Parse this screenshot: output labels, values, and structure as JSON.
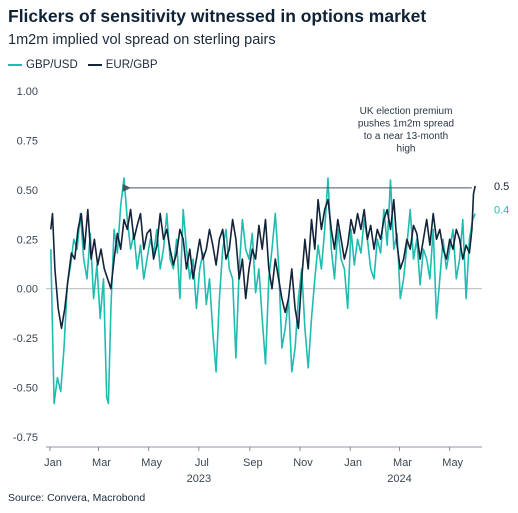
{
  "title": "Flickers of sensitivity witnessed in options market",
  "subtitle": "1m2m implied vol spread on sterling pairs",
  "source": "Source: Convera, Macrobond",
  "colors": {
    "gbpusd": "#1fbcb0",
    "eurgbp": "#13233a",
    "axis": "#6b7682"
  },
  "chart_data": {
    "type": "line",
    "title": "Flickers of sensitivity witnessed in options market",
    "subtitle": "1m2m implied vol spread on sterling pairs",
    "xlabel": "",
    "ylabel": "",
    "ylim": [
      -0.75,
      1.0
    ],
    "yticks": [
      "1.00",
      "0.75",
      "0.50",
      "0.25",
      "0.00",
      "-0.25",
      "-0.50",
      "-0.75"
    ],
    "xticks": [
      "Jan",
      "Mar",
      "May",
      "Jul",
      "Sep",
      "Nov",
      "Jan",
      "Mar",
      "May"
    ],
    "year_labels": [
      "2023",
      "2024"
    ],
    "grid": false,
    "legend": "top-left",
    "series": [
      {
        "name": "GBP/USD",
        "end_label": "0.4",
        "color": "#1fbcb0",
        "points": [
          [
            "2023-01-02",
            0.2
          ],
          [
            "2023-01-06",
            -0.58
          ],
          [
            "2023-01-10",
            -0.45
          ],
          [
            "2023-01-14",
            -0.52
          ],
          [
            "2023-01-18",
            -0.3
          ],
          [
            "2023-01-22",
            0.02
          ],
          [
            "2023-01-26",
            0.12
          ],
          [
            "2023-01-30",
            0.25
          ],
          [
            "2023-02-03",
            0.2
          ],
          [
            "2023-02-07",
            0.38
          ],
          [
            "2023-02-11",
            0.15
          ],
          [
            "2023-02-15",
            0.05
          ],
          [
            "2023-02-19",
            0.28
          ],
          [
            "2023-02-23",
            -0.05
          ],
          [
            "2023-02-27",
            0.12
          ],
          [
            "2023-03-03",
            -0.15
          ],
          [
            "2023-03-07",
            0.05
          ],
          [
            "2023-03-11",
            -0.55
          ],
          [
            "2023-03-13",
            -0.58
          ],
          [
            "2023-03-16",
            -0.1
          ],
          [
            "2023-03-20",
            0.3
          ],
          [
            "2023-03-24",
            0.18
          ],
          [
            "2023-03-28",
            0.42
          ],
          [
            "2023-04-01",
            0.56
          ],
          [
            "2023-04-05",
            0.35
          ],
          [
            "2023-04-09",
            0.2
          ],
          [
            "2023-04-13",
            0.28
          ],
          [
            "2023-04-17",
            0.1
          ],
          [
            "2023-04-21",
            0.22
          ],
          [
            "2023-04-25",
            0.05
          ],
          [
            "2023-04-29",
            0.15
          ],
          [
            "2023-05-03",
            0.25
          ],
          [
            "2023-05-07",
            0.18
          ],
          [
            "2023-05-11",
            0.3
          ],
          [
            "2023-05-15",
            0.1
          ],
          [
            "2023-05-19",
            0.2
          ],
          [
            "2023-05-23",
            0.38
          ],
          [
            "2023-05-27",
            0.15
          ],
          [
            "2023-05-31",
            0.1
          ],
          [
            "2023-06-04",
            0.25
          ],
          [
            "2023-06-08",
            -0.05
          ],
          [
            "2023-06-12",
            0.4
          ],
          [
            "2023-06-16",
            0.2
          ],
          [
            "2023-06-20",
            0.05
          ],
          [
            "2023-06-24",
            0.15
          ],
          [
            "2023-06-28",
            -0.1
          ],
          [
            "2023-07-02",
            0.1
          ],
          [
            "2023-07-06",
            0.18
          ],
          [
            "2023-07-10",
            -0.08
          ],
          [
            "2023-07-14",
            0.05
          ],
          [
            "2023-07-18",
            -0.22
          ],
          [
            "2023-07-22",
            -0.42
          ],
          [
            "2023-07-26",
            -0.05
          ],
          [
            "2023-07-30",
            0.2
          ],
          [
            "2023-08-03",
            0.3
          ],
          [
            "2023-08-07",
            0.1
          ],
          [
            "2023-08-11",
            0.05
          ],
          [
            "2023-08-15",
            -0.35
          ],
          [
            "2023-08-19",
            0.1
          ],
          [
            "2023-08-23",
            0.35
          ],
          [
            "2023-08-27",
            0.2
          ],
          [
            "2023-08-31",
            0.15
          ],
          [
            "2023-09-04",
            0.28
          ],
          [
            "2023-09-08",
            -0.02
          ],
          [
            "2023-09-12",
            0.1
          ],
          [
            "2023-09-16",
            -0.15
          ],
          [
            "2023-09-20",
            -0.38
          ],
          [
            "2023-09-24",
            0.05
          ],
          [
            "2023-09-28",
            0.2
          ],
          [
            "2023-10-02",
            0.38
          ],
          [
            "2023-10-06",
            0.12
          ],
          [
            "2023-10-10",
            -0.3
          ],
          [
            "2023-10-14",
            -0.2
          ],
          [
            "2023-10-18",
            -0.05
          ],
          [
            "2023-10-22",
            -0.42
          ],
          [
            "2023-10-26",
            -0.3
          ],
          [
            "2023-10-30",
            -0.05
          ],
          [
            "2023-11-03",
            0.1
          ],
          [
            "2023-11-07",
            -0.2
          ],
          [
            "2023-11-11",
            -0.4
          ],
          [
            "2023-11-15",
            -0.15
          ],
          [
            "2023-11-19",
            0.05
          ],
          [
            "2023-11-23",
            0.22
          ],
          [
            "2023-11-27",
            0.1
          ],
          [
            "2023-12-01",
            0.3
          ],
          [
            "2023-12-05",
            0.56
          ],
          [
            "2023-12-09",
            0.2
          ],
          [
            "2023-12-13",
            0.05
          ],
          [
            "2023-12-17",
            0.3
          ],
          [
            "2023-12-21",
            0.15
          ],
          [
            "2023-12-25",
            0.1
          ],
          [
            "2023-12-29",
            -0.1
          ],
          [
            "2024-01-02",
            0.3
          ],
          [
            "2024-01-06",
            0.12
          ],
          [
            "2024-01-10",
            0.25
          ],
          [
            "2024-01-14",
            0.18
          ],
          [
            "2024-01-18",
            0.35
          ],
          [
            "2024-01-22",
            0.25
          ],
          [
            "2024-01-26",
            0.1
          ],
          [
            "2024-01-30",
            0.05
          ],
          [
            "2024-02-03",
            0.25
          ],
          [
            "2024-02-07",
            0.18
          ],
          [
            "2024-02-11",
            0.4
          ],
          [
            "2024-02-15",
            0.22
          ],
          [
            "2024-02-19",
            0.55
          ],
          [
            "2024-02-23",
            0.2
          ],
          [
            "2024-02-27",
            0.28
          ],
          [
            "2024-03-02",
            -0.05
          ],
          [
            "2024-03-06",
            0.05
          ],
          [
            "2024-03-10",
            0.22
          ],
          [
            "2024-03-14",
            0.4
          ],
          [
            "2024-03-18",
            0.15
          ],
          [
            "2024-03-22",
            0.25
          ],
          [
            "2024-03-26",
            0.02
          ],
          [
            "2024-03-30",
            0.2
          ],
          [
            "2024-04-03",
            0.15
          ],
          [
            "2024-04-07",
            0.05
          ],
          [
            "2024-04-11",
            0.3
          ],
          [
            "2024-04-15",
            -0.15
          ],
          [
            "2024-04-19",
            0.05
          ],
          [
            "2024-04-23",
            0.25
          ],
          [
            "2024-04-27",
            0.1
          ],
          [
            "2024-05-01",
            0.2
          ],
          [
            "2024-05-05",
            0.3
          ],
          [
            "2024-05-09",
            0.05
          ],
          [
            "2024-05-13",
            0.15
          ],
          [
            "2024-05-17",
            0.35
          ],
          [
            "2024-05-21",
            -0.05
          ],
          [
            "2024-05-25",
            0.25
          ],
          [
            "2024-05-29",
            0.35
          ],
          [
            "2024-06-01",
            0.38
          ]
        ]
      },
      {
        "name": "EUR/GBP",
        "end_label": "0.5",
        "color": "#13233a",
        "points": [
          [
            "2023-01-02",
            0.3
          ],
          [
            "2023-01-04",
            0.38
          ],
          [
            "2023-01-07",
            0.1
          ],
          [
            "2023-01-11",
            -0.1
          ],
          [
            "2023-01-15",
            -0.2
          ],
          [
            "2023-01-19",
            -0.1
          ],
          [
            "2023-01-23",
            0.05
          ],
          [
            "2023-01-27",
            0.18
          ],
          [
            "2023-01-31",
            0.15
          ],
          [
            "2023-02-04",
            0.3
          ],
          [
            "2023-02-08",
            0.38
          ],
          [
            "2023-02-12",
            0.2
          ],
          [
            "2023-02-16",
            0.4
          ],
          [
            "2023-02-20",
            0.15
          ],
          [
            "2023-02-24",
            0.25
          ],
          [
            "2023-02-28",
            0.12
          ],
          [
            "2023-03-04",
            0.2
          ],
          [
            "2023-03-08",
            0.1
          ],
          [
            "2023-03-12",
            0.05
          ],
          [
            "2023-03-16",
            0.0
          ],
          [
            "2023-03-20",
            0.15
          ],
          [
            "2023-03-24",
            0.28
          ],
          [
            "2023-03-28",
            0.2
          ],
          [
            "2023-04-01",
            0.35
          ],
          [
            "2023-04-05",
            0.3
          ],
          [
            "2023-04-09",
            0.4
          ],
          [
            "2023-04-13",
            0.25
          ],
          [
            "2023-04-17",
            0.32
          ],
          [
            "2023-04-21",
            0.38
          ],
          [
            "2023-04-25",
            0.2
          ],
          [
            "2023-04-29",
            0.28
          ],
          [
            "2023-05-03",
            0.3
          ],
          [
            "2023-05-07",
            0.15
          ],
          [
            "2023-05-11",
            0.22
          ],
          [
            "2023-05-15",
            0.38
          ],
          [
            "2023-05-19",
            0.25
          ],
          [
            "2023-05-23",
            0.3
          ],
          [
            "2023-05-27",
            0.2
          ],
          [
            "2023-05-31",
            0.12
          ],
          [
            "2023-06-04",
            0.18
          ],
          [
            "2023-06-08",
            0.3
          ],
          [
            "2023-06-12",
            0.25
          ],
          [
            "2023-06-16",
            0.1
          ],
          [
            "2023-06-20",
            0.2
          ],
          [
            "2023-06-24",
            0.05
          ],
          [
            "2023-06-28",
            0.15
          ],
          [
            "2023-07-02",
            0.25
          ],
          [
            "2023-07-06",
            0.15
          ],
          [
            "2023-07-10",
            0.2
          ],
          [
            "2023-07-14",
            0.3
          ],
          [
            "2023-07-18",
            0.22
          ],
          [
            "2023-07-22",
            0.12
          ],
          [
            "2023-07-26",
            0.25
          ],
          [
            "2023-07-30",
            0.3
          ],
          [
            "2023-08-03",
            0.15
          ],
          [
            "2023-08-07",
            0.2
          ],
          [
            "2023-08-11",
            0.35
          ],
          [
            "2023-08-15",
            0.25
          ],
          [
            "2023-08-19",
            0.05
          ],
          [
            "2023-08-23",
            0.15
          ],
          [
            "2023-08-27",
            -0.05
          ],
          [
            "2023-08-31",
            0.1
          ],
          [
            "2023-09-04",
            0.2
          ],
          [
            "2023-09-08",
            0.15
          ],
          [
            "2023-09-12",
            0.32
          ],
          [
            "2023-09-16",
            0.2
          ],
          [
            "2023-09-20",
            0.35
          ],
          [
            "2023-09-24",
            0.1
          ],
          [
            "2023-09-28",
            0.0
          ],
          [
            "2023-10-02",
            0.15
          ],
          [
            "2023-10-06",
            0.05
          ],
          [
            "2023-10-10",
            -0.05
          ],
          [
            "2023-10-14",
            -0.12
          ],
          [
            "2023-10-18",
            -0.05
          ],
          [
            "2023-10-22",
            0.1
          ],
          [
            "2023-10-26",
            -0.1
          ],
          [
            "2023-10-30",
            -0.2
          ],
          [
            "2023-11-03",
            0.05
          ],
          [
            "2023-11-07",
            0.25
          ],
          [
            "2023-11-11",
            0.1
          ],
          [
            "2023-11-15",
            0.35
          ],
          [
            "2023-11-19",
            0.2
          ],
          [
            "2023-11-23",
            0.45
          ],
          [
            "2023-11-27",
            0.3
          ],
          [
            "2023-12-01",
            0.4
          ],
          [
            "2023-12-05",
            0.45
          ],
          [
            "2023-12-09",
            0.3
          ],
          [
            "2023-12-13",
            0.2
          ],
          [
            "2023-12-17",
            0.35
          ],
          [
            "2023-12-21",
            0.25
          ],
          [
            "2023-12-25",
            0.15
          ],
          [
            "2023-12-29",
            0.22
          ],
          [
            "2024-01-02",
            0.35
          ],
          [
            "2024-01-06",
            0.28
          ],
          [
            "2024-01-10",
            0.38
          ],
          [
            "2024-01-14",
            0.3
          ],
          [
            "2024-01-18",
            0.4
          ],
          [
            "2024-01-22",
            0.25
          ],
          [
            "2024-01-26",
            0.32
          ],
          [
            "2024-01-30",
            0.2
          ],
          [
            "2024-02-03",
            0.3
          ],
          [
            "2024-02-07",
            0.25
          ],
          [
            "2024-02-11",
            0.35
          ],
          [
            "2024-02-15",
            0.4
          ],
          [
            "2024-02-19",
            0.3
          ],
          [
            "2024-02-23",
            0.45
          ],
          [
            "2024-02-27",
            0.22
          ],
          [
            "2024-03-02",
            0.1
          ],
          [
            "2024-03-06",
            0.15
          ],
          [
            "2024-03-10",
            0.25
          ],
          [
            "2024-03-14",
            0.2
          ],
          [
            "2024-03-18",
            0.32
          ],
          [
            "2024-03-22",
            0.28
          ],
          [
            "2024-03-26",
            0.15
          ],
          [
            "2024-03-30",
            0.25
          ],
          [
            "2024-04-03",
            0.35
          ],
          [
            "2024-04-07",
            0.22
          ],
          [
            "2024-04-11",
            0.38
          ],
          [
            "2024-04-15",
            0.25
          ],
          [
            "2024-04-19",
            0.3
          ],
          [
            "2024-04-23",
            0.2
          ],
          [
            "2024-04-27",
            0.15
          ],
          [
            "2024-05-01",
            0.25
          ],
          [
            "2024-05-05",
            0.2
          ],
          [
            "2024-05-09",
            0.3
          ],
          [
            "2024-05-13",
            0.25
          ],
          [
            "2024-05-17",
            0.15
          ],
          [
            "2024-05-21",
            0.22
          ],
          [
            "2024-05-25",
            0.18
          ],
          [
            "2024-05-28",
            0.3
          ],
          [
            "2024-05-30",
            0.48
          ],
          [
            "2024-06-01",
            0.52
          ]
        ]
      }
    ],
    "annotations": [
      {
        "lines": [
          "UK election premium",
          "pushes 1m2m spread",
          "to a near 13-month",
          "high"
        ],
        "arrow_from": [
          "2024-05-28",
          0.51
        ],
        "arrow_to": [
          "2023-04-03",
          0.51
        ]
      }
    ]
  }
}
